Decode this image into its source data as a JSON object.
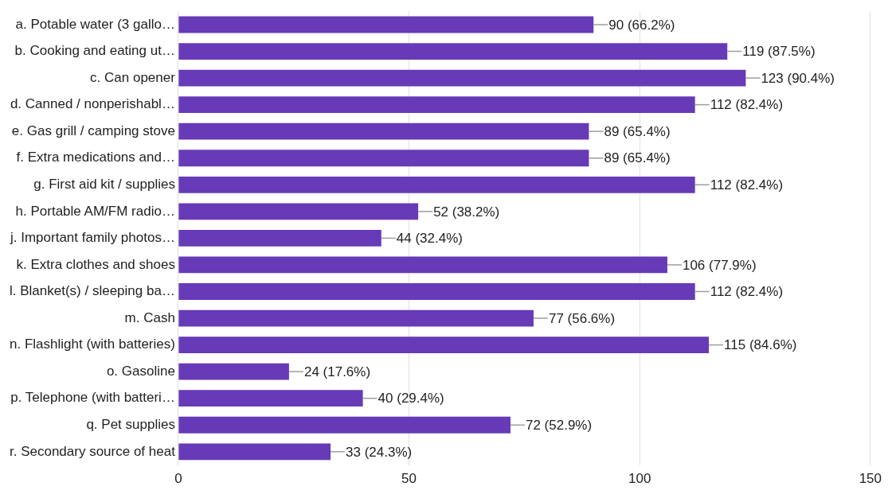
{
  "chart_data": {
    "type": "bar",
    "orientation": "horizontal",
    "categories": [
      "a. Potable water (3 gallo…",
      "b. Cooking and eating ut…",
      "c. Can opener",
      "d. Canned / nonperishabl…",
      "e. Gas grill / camping stove",
      "f. Extra medications and…",
      "g. First aid kit / supplies",
      "h. Portable AM/FM radio…",
      "j. Important family photos…",
      "k. Extra clothes and shoes",
      "l. Blanket(s) / sleeping ba…",
      "m. Cash",
      "n. Flashlight (with batteries)",
      "o. Gasoline",
      "p. Telephone (with batteri…",
      "q. Pet supplies",
      "r. Secondary source of heat"
    ],
    "values": [
      90,
      119,
      123,
      112,
      89,
      89,
      112,
      52,
      44,
      106,
      112,
      77,
      115,
      24,
      40,
      72,
      33
    ],
    "value_labels": [
      "90 (66.2%)",
      "119 (87.5%)",
      "123 (90.4%)",
      "112 (82.4%)",
      "89 (65.4%)",
      "89 (65.4%)",
      "112 (82.4%)",
      "52 (38.2%)",
      "44 (32.4%)",
      "106 (77.9%)",
      "112 (82.4%)",
      "77 (56.6%)",
      "115 (84.6%)",
      "24 (17.6%)",
      "40 (29.4%)",
      "72 (52.9%)",
      "33 (24.3%)"
    ],
    "color": "#673ab7",
    "xlim": [
      0,
      150
    ],
    "xticks": [
      0,
      50,
      100,
      150
    ],
    "grid": "x",
    "legend": false
  }
}
